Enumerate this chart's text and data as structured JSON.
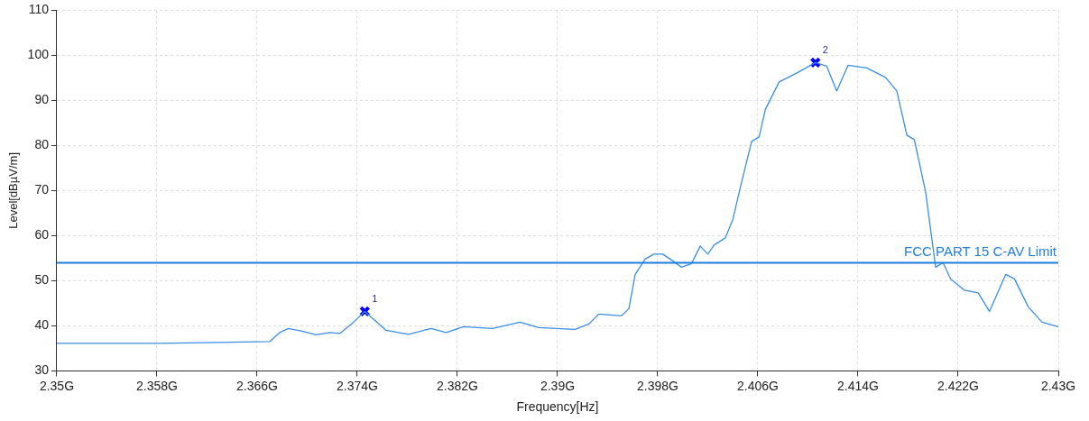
{
  "chart_data": {
    "type": "line",
    "xlabel": "Frequency[Hz]",
    "ylabel": "Level[dBµV/m]",
    "xlim": [
      2.35,
      2.43
    ],
    "ylim": [
      30,
      110
    ],
    "xticks": [
      {
        "value": 2.35,
        "label": "2.35G"
      },
      {
        "value": 2.358,
        "label": "2.358G"
      },
      {
        "value": 2.366,
        "label": "2.366G"
      },
      {
        "value": 2.374,
        "label": "2.374G"
      },
      {
        "value": 2.382,
        "label": "2.382G"
      },
      {
        "value": 2.39,
        "label": "2.39G"
      },
      {
        "value": 2.398,
        "label": "2.398G"
      },
      {
        "value": 2.406,
        "label": "2.406G"
      },
      {
        "value": 2.414,
        "label": "2.414G"
      },
      {
        "value": 2.422,
        "label": "2.422G"
      },
      {
        "value": 2.43,
        "label": "2.43G"
      }
    ],
    "yticks": [
      30,
      40,
      50,
      60,
      70,
      80,
      90,
      100,
      110
    ],
    "grid": true,
    "legend": false,
    "series": [
      {
        "color": "#3a8ee6",
        "marker": "none",
        "line_style": "solid",
        "x": [
          2.35,
          2.3581,
          2.367,
          2.3678,
          2.3685,
          2.3696,
          2.3707,
          2.3718,
          2.3726,
          2.3737,
          2.3746,
          2.3755,
          2.3763,
          2.3781,
          2.3799,
          2.3811,
          2.3825,
          2.3848,
          2.387,
          2.3885,
          2.3914,
          2.3925,
          2.3933,
          2.3951,
          2.3957,
          2.3962,
          2.397,
          2.3977,
          2.3984,
          2.3992,
          2.3999,
          2.4007,
          2.4014,
          2.402,
          2.4025,
          2.4034,
          2.404,
          2.4046,
          2.4055,
          2.4061,
          2.4066,
          2.4077,
          2.4092,
          2.4106,
          2.4115,
          2.4123,
          2.4132,
          2.4147,
          2.4162,
          2.4171,
          2.4179,
          2.4185,
          2.4194,
          2.4202,
          2.4208,
          2.4214,
          2.4225,
          2.4236,
          2.4245,
          2.4258,
          2.4265,
          2.4276,
          2.4287,
          2.43
        ],
        "values": [
          36.1,
          36.1,
          36.5,
          38.5,
          39.4,
          38.8,
          38.0,
          38.5,
          38.3,
          40.8,
          43.2,
          41.0,
          39.0,
          38.1,
          39.4,
          38.5,
          39.8,
          39.4,
          40.8,
          39.6,
          39.2,
          40.4,
          42.6,
          42.2,
          43.8,
          51.4,
          54.8,
          55.9,
          55.9,
          54.4,
          53.0,
          53.8,
          57.7,
          55.9,
          57.9,
          59.5,
          63.6,
          70.7,
          80.9,
          81.9,
          88.0,
          94.1,
          96.2,
          98.4,
          97.6,
          92.1,
          97.8,
          97.2,
          95.1,
          92.1,
          82.3,
          81.3,
          69.7,
          53.0,
          54.0,
          50.4,
          47.9,
          47.3,
          43.2,
          51.4,
          50.4,
          44.2,
          40.8,
          39.8
        ]
      },
      {
        "type": "scatter",
        "color": "#0000ff",
        "marker": "cross",
        "x": [
          2.3746,
          2.4106
        ],
        "values": [
          43.2,
          98.4
        ]
      }
    ],
    "ref_lines": [
      {
        "axis": "y",
        "value": 54,
        "label": "FCC PART 15 C-AV Limit",
        "color": "#1f7fdc"
      }
    ],
    "annotations": [
      {
        "text": "1",
        "x": 2.3746,
        "y": 43.2
      },
      {
        "text": "2",
        "x": 2.4106,
        "y": 98.4
      }
    ]
  }
}
